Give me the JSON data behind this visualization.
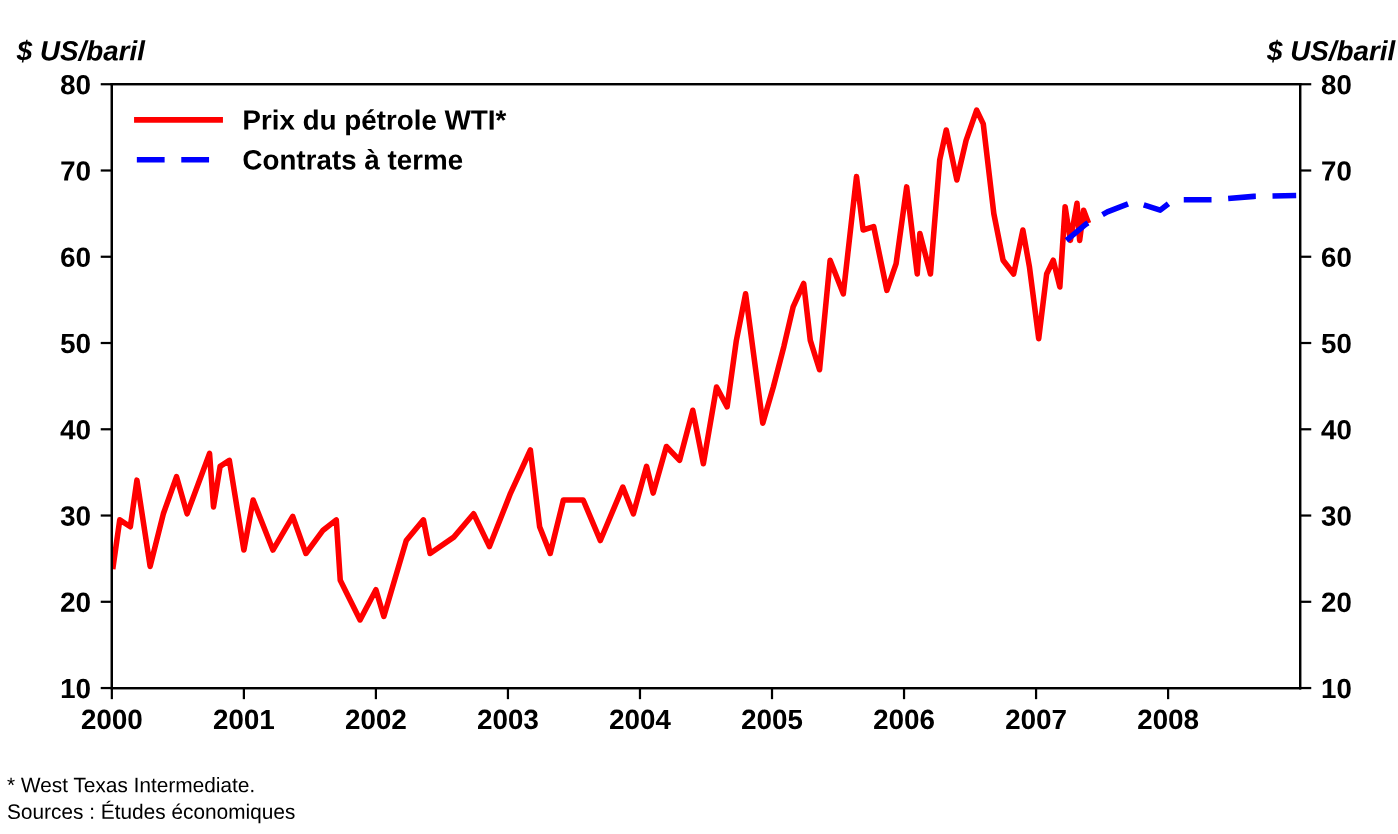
{
  "chart_data": {
    "type": "line",
    "ylabel": "$ US/baril",
    "y2label": "$ US/baril",
    "xlim": [
      2000,
      2009
    ],
    "xticks": [
      2000,
      2001,
      2002,
      2003,
      2004,
      2005,
      2006,
      2007,
      2008
    ],
    "ylim": [
      10,
      80
    ],
    "yticks": [
      10,
      20,
      30,
      40,
      50,
      60,
      70,
      80
    ],
    "y2lim": [
      10,
      80
    ],
    "y2ticks": [
      10,
      20,
      30,
      40,
      50,
      60,
      70,
      80
    ],
    "grid": false,
    "legend": "top left",
    "marker": "none",
    "annotations": [
      "* West Texas Intermediate.",
      "Sources : Études économiques"
    ],
    "series": [
      {
        "name": "Prix du pétrole WTI*",
        "color": "#ff0000",
        "line_style": "solid",
        "x": [
          2000.01,
          2000.06,
          2000.14,
          2000.19,
          2000.29,
          2000.39,
          2000.49,
          2000.57,
          2000.74,
          2000.77,
          2000.82,
          2000.89,
          2001.0,
          2001.07,
          2001.22,
          2001.37,
          2001.47,
          2001.6,
          2001.7,
          2001.73,
          2001.88,
          2002.0,
          2002.06,
          2002.23,
          2002.36,
          2002.41,
          2002.59,
          2002.74,
          2002.86,
          2003.02,
          2003.17,
          2003.24,
          2003.32,
          2003.42,
          2003.57,
          2003.7,
          2003.87,
          2003.95,
          2004.05,
          2004.1,
          2004.2,
          2004.3,
          2004.4,
          2004.48,
          2004.58,
          2004.66,
          2004.73,
          2004.8,
          2004.93,
          2005.01,
          2005.09,
          2005.16,
          2005.24,
          2005.29,
          2005.36,
          2005.44,
          2005.54,
          2005.64,
          2005.69,
          2005.77,
          2005.87,
          2005.94,
          2006.02,
          2006.1,
          2006.12,
          2006.2,
          2006.27,
          2006.32,
          2006.4,
          2006.47,
          2006.55,
          2006.6,
          2006.68,
          2006.75,
          2006.83,
          2006.9,
          2006.95,
          2007.02,
          2007.08,
          2007.13,
          2007.18,
          2007.22,
          2007.26,
          2007.31,
          2007.33,
          2007.36,
          2007.39
        ],
        "values": [
          24.1,
          29.5,
          28.7,
          34.1,
          24.1,
          30.2,
          34.5,
          30.2,
          37.2,
          31.0,
          35.7,
          36.4,
          26.0,
          31.8,
          26.0,
          29.9,
          25.6,
          28.3,
          29.5,
          22.5,
          17.9,
          21.4,
          18.3,
          27.1,
          29.5,
          25.6,
          27.5,
          30.2,
          26.4,
          32.6,
          37.6,
          28.7,
          25.6,
          31.8,
          31.8,
          27.1,
          33.3,
          30.2,
          35.7,
          32.6,
          38.0,
          36.4,
          42.2,
          36.0,
          44.9,
          42.6,
          50.3,
          55.7,
          40.7,
          44.9,
          49.6,
          54.2,
          56.9,
          50.3,
          46.9,
          59.6,
          55.7,
          69.3,
          63.1,
          63.5,
          56.1,
          59.2,
          68.1,
          58.0,
          62.7,
          58.0,
          71.2,
          74.7,
          68.9,
          73.5,
          77.0,
          75.4,
          65.0,
          59.6,
          58.0,
          63.1,
          58.8,
          50.5,
          58.0,
          59.6,
          56.5,
          65.8,
          61.9,
          66.2,
          61.9,
          65.4,
          64.2
        ]
      },
      {
        "name": "Contrats à terme",
        "color": "#0000ff",
        "line_style": "dashed",
        "x": [
          2007.23,
          2007.38,
          2007.54,
          2007.74,
          2007.94,
          2008.04,
          2008.34,
          2008.65,
          2008.97
        ],
        "values": [
          61.9,
          63.8,
          65.2,
          66.4,
          65.4,
          66.6,
          66.6,
          67.0,
          67.1
        ]
      }
    ]
  }
}
